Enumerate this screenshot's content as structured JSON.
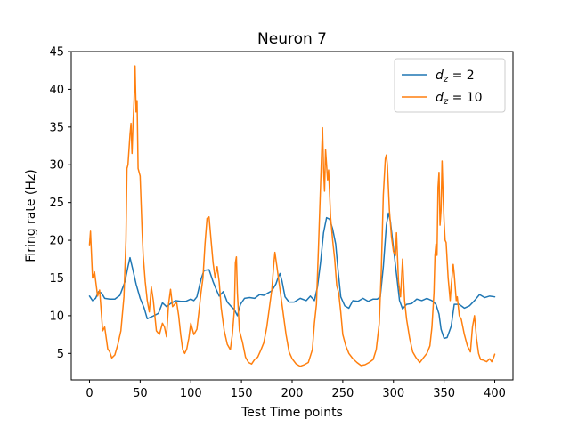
{
  "chart_data": {
    "type": "line",
    "title": "Neuron 7",
    "xlabel": "Test Time points",
    "ylabel": "Firing rate (Hz)",
    "xlim": [
      -18,
      418
    ],
    "ylim": [
      1.5,
      45
    ],
    "xticks": [
      0,
      50,
      100,
      150,
      200,
      250,
      300,
      350,
      400
    ],
    "yticks": [
      5,
      10,
      15,
      20,
      25,
      30,
      35,
      40,
      45
    ],
    "grid": false,
    "legend_position": "top-right",
    "series": [
      {
        "name": "dz = 2",
        "legend_main": "d",
        "legend_sub": "z",
        "legend_rest": " = 2",
        "color": "#1f77b4",
        "points": [
          [
            0,
            12.6
          ],
          [
            3,
            12.0
          ],
          [
            6,
            12.3
          ],
          [
            9,
            13.2
          ],
          [
            12,
            13.0
          ],
          [
            15,
            12.3
          ],
          [
            20,
            12.2
          ],
          [
            25,
            12.2
          ],
          [
            30,
            12.7
          ],
          [
            35,
            14.5
          ],
          [
            38,
            16.5
          ],
          [
            40,
            17.7
          ],
          [
            43,
            16.0
          ],
          [
            46,
            14.2
          ],
          [
            50,
            12.3
          ],
          [
            54,
            11.0
          ],
          [
            57,
            9.6
          ],
          [
            62,
            9.9
          ],
          [
            68,
            10.3
          ],
          [
            72,
            11.7
          ],
          [
            76,
            11.2
          ],
          [
            80,
            11.6
          ],
          [
            85,
            12.0
          ],
          [
            90,
            11.9
          ],
          [
            95,
            11.9
          ],
          [
            100,
            12.2
          ],
          [
            103,
            12.0
          ],
          [
            106,
            12.5
          ],
          [
            110,
            14.8
          ],
          [
            113,
            16.0
          ],
          [
            118,
            16.1
          ],
          [
            122,
            14.5
          ],
          [
            125,
            13.5
          ],
          [
            128,
            12.6
          ],
          [
            132,
            13.2
          ],
          [
            136,
            11.8
          ],
          [
            140,
            11.2
          ],
          [
            143,
            10.8
          ],
          [
            146,
            10.0
          ],
          [
            149,
            11.5
          ],
          [
            153,
            12.3
          ],
          [
            158,
            12.4
          ],
          [
            163,
            12.3
          ],
          [
            168,
            12.8
          ],
          [
            172,
            12.7
          ],
          [
            176,
            13.0
          ],
          [
            180,
            13.3
          ],
          [
            184,
            14.2
          ],
          [
            186,
            15.0
          ],
          [
            188,
            15.6
          ],
          [
            190,
            14.6
          ],
          [
            193,
            12.5
          ],
          [
            197,
            11.8
          ],
          [
            202,
            11.8
          ],
          [
            208,
            12.3
          ],
          [
            214,
            12.0
          ],
          [
            218,
            12.6
          ],
          [
            222,
            12.0
          ],
          [
            225,
            13.8
          ],
          [
            228,
            17.0
          ],
          [
            231,
            21.0
          ],
          [
            234,
            23.0
          ],
          [
            237,
            22.8
          ],
          [
            240,
            21.5
          ],
          [
            243,
            19.5
          ],
          [
            245,
            16.5
          ],
          [
            248,
            12.5
          ],
          [
            252,
            11.3
          ],
          [
            256,
            11.0
          ],
          [
            260,
            12.0
          ],
          [
            265,
            11.9
          ],
          [
            270,
            12.3
          ],
          [
            275,
            11.9
          ],
          [
            280,
            12.2
          ],
          [
            284,
            12.2
          ],
          [
            287,
            12.5
          ],
          [
            290,
            16.5
          ],
          [
            293,
            22.0
          ],
          [
            295,
            23.6
          ],
          [
            297,
            22.5
          ],
          [
            300,
            19.0
          ],
          [
            303,
            15.5
          ],
          [
            306,
            12.0
          ],
          [
            309,
            10.9
          ],
          [
            313,
            11.5
          ],
          [
            318,
            11.6
          ],
          [
            323,
            12.2
          ],
          [
            328,
            12.0
          ],
          [
            333,
            12.3
          ],
          [
            338,
            12.0
          ],
          [
            342,
            11.5
          ],
          [
            345,
            10.2
          ],
          [
            347,
            8.2
          ],
          [
            350,
            7.0
          ],
          [
            353,
            7.1
          ],
          [
            357,
            8.6
          ],
          [
            360,
            11.5
          ],
          [
            365,
            11.5
          ],
          [
            370,
            11.0
          ],
          [
            375,
            11.3
          ],
          [
            380,
            12.0
          ],
          [
            385,
            12.8
          ],
          [
            390,
            12.4
          ],
          [
            395,
            12.6
          ],
          [
            400,
            12.5
          ]
        ]
      },
      {
        "name": "dz = 10",
        "legend_main": "d",
        "legend_sub": "z",
        "legend_rest": " = 10",
        "color": "#ff7f0e",
        "points": [
          [
            0,
            19.4
          ],
          [
            1,
            21.2
          ],
          [
            3,
            15.0
          ],
          [
            5,
            15.8
          ],
          [
            8,
            12.6
          ],
          [
            10,
            13.4
          ],
          [
            13,
            8.0
          ],
          [
            15,
            8.5
          ],
          [
            18,
            5.6
          ],
          [
            20,
            5.2
          ],
          [
            22,
            4.4
          ],
          [
            25,
            4.8
          ],
          [
            28,
            6.2
          ],
          [
            31,
            8.0
          ],
          [
            34,
            12.5
          ],
          [
            36,
            20.0
          ],
          [
            37,
            29.5
          ],
          [
            38,
            30.0
          ],
          [
            40,
            34.0
          ],
          [
            41,
            35.5
          ],
          [
            42,
            31.5
          ],
          [
            43,
            35.5
          ],
          [
            44,
            38.5
          ],
          [
            45,
            43.1
          ],
          [
            46,
            37.0
          ],
          [
            47,
            38.5
          ],
          [
            48,
            29.5
          ],
          [
            50,
            28.5
          ],
          [
            52,
            21.0
          ],
          [
            53,
            18.0
          ],
          [
            55,
            14.5
          ],
          [
            57,
            12.0
          ],
          [
            59,
            10.5
          ],
          [
            61,
            13.8
          ],
          [
            63,
            12.0
          ],
          [
            66,
            8.0
          ],
          [
            69,
            7.5
          ],
          [
            72,
            9.0
          ],
          [
            74,
            8.5
          ],
          [
            76,
            7.2
          ],
          [
            78,
            11.5
          ],
          [
            80,
            13.5
          ],
          [
            82,
            11.2
          ],
          [
            84,
            11.5
          ],
          [
            86,
            11.8
          ],
          [
            88,
            10.0
          ],
          [
            90,
            7.5
          ],
          [
            92,
            5.5
          ],
          [
            94,
            5.0
          ],
          [
            96,
            5.6
          ],
          [
            98,
            7.0
          ],
          [
            100,
            9.0
          ],
          [
            103,
            7.5
          ],
          [
            106,
            8.2
          ],
          [
            108,
            10.5
          ],
          [
            110,
            13.0
          ],
          [
            112,
            15.0
          ],
          [
            114,
            19.5
          ],
          [
            116,
            22.9
          ],
          [
            118,
            23.1
          ],
          [
            120,
            20.0
          ],
          [
            122,
            17.0
          ],
          [
            124,
            15.0
          ],
          [
            126,
            16.5
          ],
          [
            128,
            14.5
          ],
          [
            130,
            11.0
          ],
          [
            133,
            8.0
          ],
          [
            136,
            6.2
          ],
          [
            139,
            5.5
          ],
          [
            141,
            7.5
          ],
          [
            143,
            10.8
          ],
          [
            144,
            17.0
          ],
          [
            145,
            17.8
          ],
          [
            146,
            13.0
          ],
          [
            148,
            8.0
          ],
          [
            151,
            6.5
          ],
          [
            154,
            4.5
          ],
          [
            157,
            3.8
          ],
          [
            160,
            3.6
          ],
          [
            163,
            4.2
          ],
          [
            166,
            4.5
          ],
          [
            169,
            5.4
          ],
          [
            172,
            6.4
          ],
          [
            175,
            8.5
          ],
          [
            178,
            11.5
          ],
          [
            180,
            13.5
          ],
          [
            182,
            17.0
          ],
          [
            183,
            18.4
          ],
          [
            185,
            16.5
          ],
          [
            187,
            14.5
          ],
          [
            189,
            12.5
          ],
          [
            191,
            10.5
          ],
          [
            194,
            7.5
          ],
          [
            197,
            5.2
          ],
          [
            200,
            4.3
          ],
          [
            204,
            3.6
          ],
          [
            208,
            3.3
          ],
          [
            212,
            3.5
          ],
          [
            216,
            3.8
          ],
          [
            220,
            5.5
          ],
          [
            222,
            9.0
          ],
          [
            224,
            11.5
          ],
          [
            226,
            19.0
          ],
          [
            228,
            27.0
          ],
          [
            229,
            31.0
          ],
          [
            230,
            34.9
          ],
          [
            231,
            29.5
          ],
          [
            232,
            26.5
          ],
          [
            233,
            32.0
          ],
          [
            235,
            28.0
          ],
          [
            236,
            29.3
          ],
          [
            238,
            23.0
          ],
          [
            240,
            20.0
          ],
          [
            242,
            17.5
          ],
          [
            244,
            14.0
          ],
          [
            246,
            13.0
          ],
          [
            248,
            10.5
          ],
          [
            250,
            7.5
          ],
          [
            253,
            6.0
          ],
          [
            256,
            5.0
          ],
          [
            260,
            4.3
          ],
          [
            264,
            3.8
          ],
          [
            268,
            3.4
          ],
          [
            272,
            3.5
          ],
          [
            276,
            3.8
          ],
          [
            280,
            4.2
          ],
          [
            283,
            5.5
          ],
          [
            286,
            9.0
          ],
          [
            288,
            16.0
          ],
          [
            290,
            26.0
          ],
          [
            292,
            30.8
          ],
          [
            293,
            31.3
          ],
          [
            294,
            30.0
          ],
          [
            295,
            27.0
          ],
          [
            296,
            24.0
          ],
          [
            298,
            20.5
          ],
          [
            300,
            18.5
          ],
          [
            302,
            18.0
          ],
          [
            303,
            21.0
          ],
          [
            305,
            14.5
          ],
          [
            307,
            12.5
          ],
          [
            309,
            17.5
          ],
          [
            311,
            12.0
          ],
          [
            313,
            9.5
          ],
          [
            316,
            7.0
          ],
          [
            319,
            5.2
          ],
          [
            322,
            4.5
          ],
          [
            326,
            3.8
          ],
          [
            330,
            4.5
          ],
          [
            333,
            5.0
          ],
          [
            336,
            6.0
          ],
          [
            338,
            8.5
          ],
          [
            340,
            13.0
          ],
          [
            341,
            18.0
          ],
          [
            342,
            19.5
          ],
          [
            343,
            18.0
          ],
          [
            344,
            27.0
          ],
          [
            345,
            29.0
          ],
          [
            346,
            22.0
          ],
          [
            347,
            24.0
          ],
          [
            348,
            30.5
          ],
          [
            349,
            26.0
          ],
          [
            350,
            22.5
          ],
          [
            351,
            20.0
          ],
          [
            352,
            19.7
          ],
          [
            354,
            15.0
          ],
          [
            356,
            12.0
          ],
          [
            357,
            14.0
          ],
          [
            359,
            16.8
          ],
          [
            360,
            15.5
          ],
          [
            362,
            12.0
          ],
          [
            363,
            12.5
          ],
          [
            365,
            10.0
          ],
          [
            367,
            9.5
          ],
          [
            370,
            7.5
          ],
          [
            373,
            6.0
          ],
          [
            376,
            5.2
          ],
          [
            378,
            8.5
          ],
          [
            380,
            10.0
          ],
          [
            382,
            7.0
          ],
          [
            384,
            5.0
          ],
          [
            386,
            4.2
          ],
          [
            389,
            4.1
          ],
          [
            392,
            3.9
          ],
          [
            395,
            4.3
          ],
          [
            397,
            3.9
          ],
          [
            399,
            4.5
          ],
          [
            400,
            4.9
          ]
        ]
      }
    ]
  }
}
